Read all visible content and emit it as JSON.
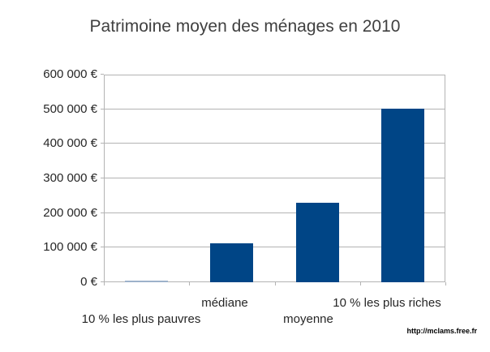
{
  "title": "Patrimoine moyen des ménages en 2010",
  "watermark": "http://mclams.free.fr",
  "chart_data": {
    "type": "bar",
    "title": "Patrimoine moyen des ménages en 2010",
    "categories": [
      "10 % les plus pauvres",
      "médiane",
      "moyenne",
      "10 % les plus riches"
    ],
    "values": [
      3000,
      113000,
      229000,
      502000
    ],
    "unit": "€",
    "xlabel": "",
    "ylabel": "",
    "ylim": [
      0,
      600000
    ],
    "y_step": 100000,
    "y_tick_labels": [
      "0 €",
      "100 000 €",
      "200 000 €",
      "300 000 €",
      "400 000 €",
      "500 000 €",
      "600 000 €"
    ],
    "grid": true,
    "legend_position": "none",
    "colors": {
      "bar": "#004586",
      "thin_bar": "#9db2ca",
      "grid": "#b3b3b3",
      "title_text": "#404040",
      "axis_text": "#262626",
      "watermark_text": "#000000"
    }
  }
}
